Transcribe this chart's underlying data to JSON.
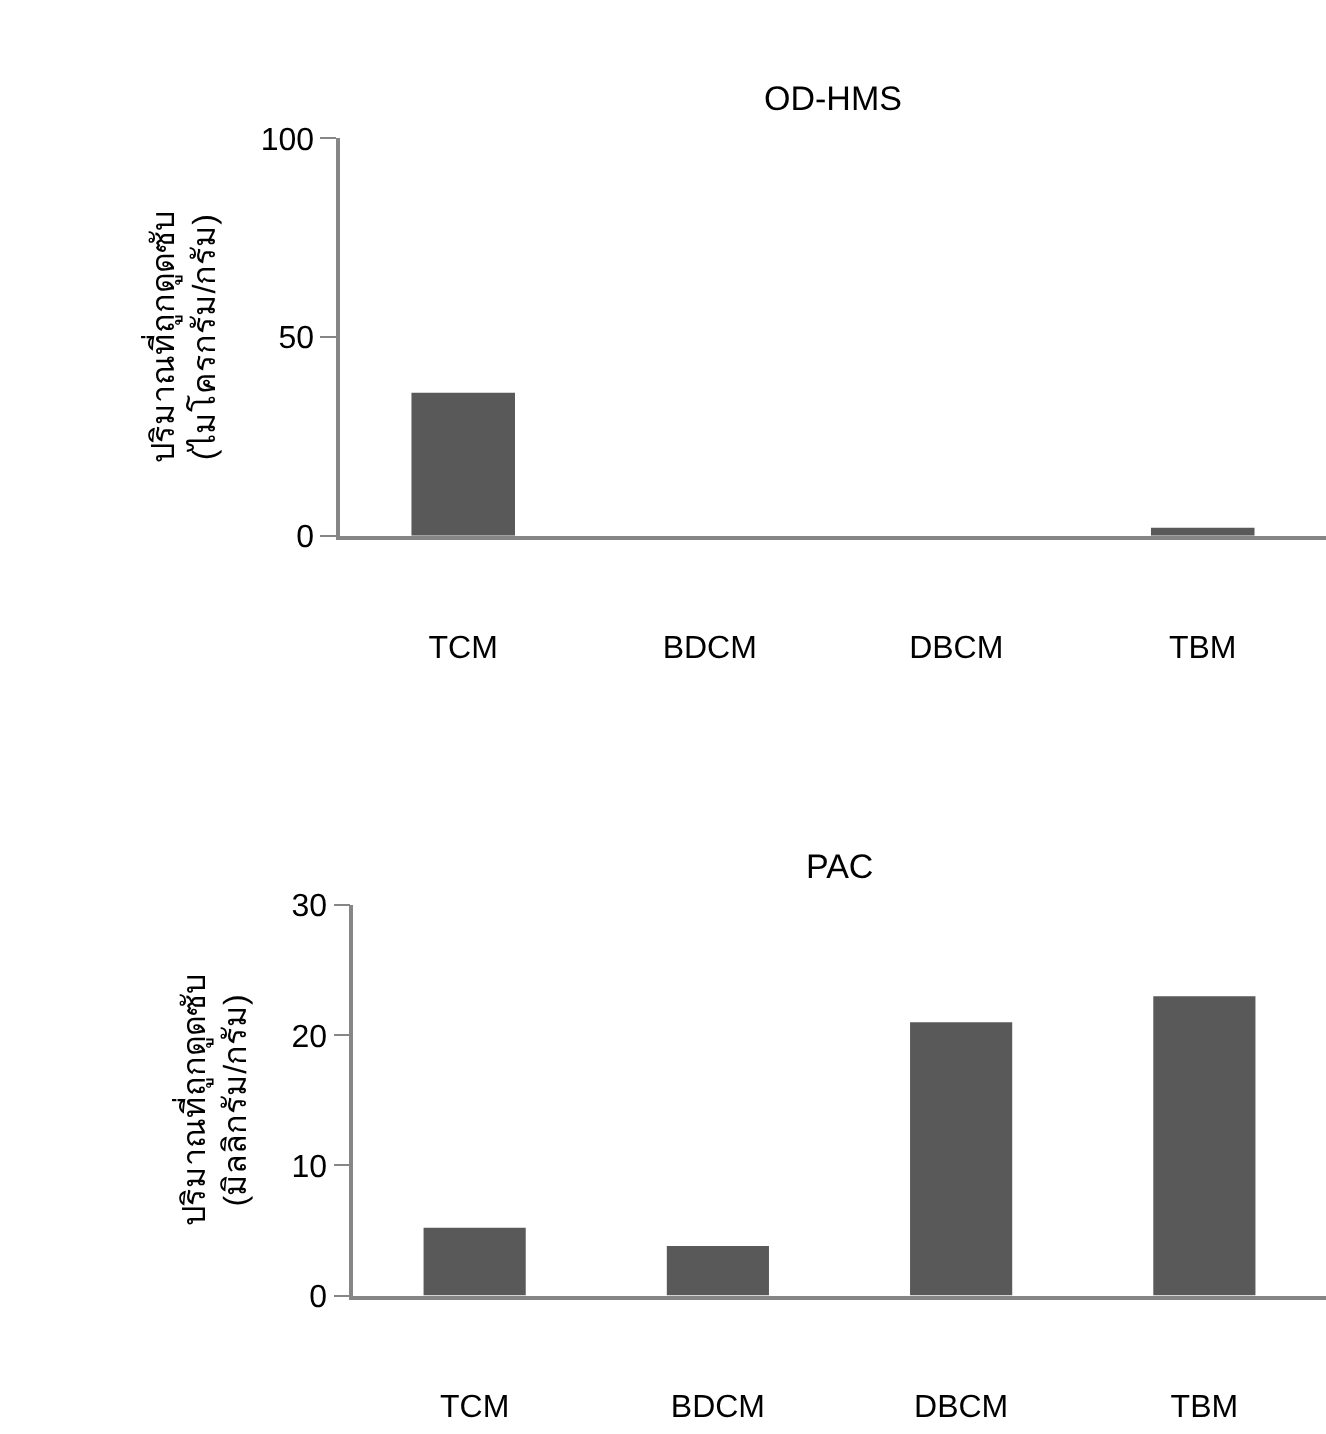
{
  "chart_data": [
    {
      "type": "bar",
      "title": "OD-HMS",
      "ylabel": "ปริมาณที่ถูกดูดซับ\n(ไมโครกรัม/กรัม)",
      "categories": [
        "TCM",
        "BDCM",
        "DBCM",
        "TBM"
      ],
      "values": [
        36,
        0,
        0,
        2
      ],
      "color": "#595959",
      "ylim": [
        0,
        100
      ],
      "yticks": [
        0,
        50,
        100
      ]
    },
    {
      "type": "bar",
      "title": "PAC",
      "ylabel": "ปริมาณที่ถูกดูดซับ\n(มิลลิกรัม/กรัม)",
      "categories": [
        "TCM",
        "BDCM",
        "DBCM",
        "TBM"
      ],
      "values": [
        5.2,
        3.8,
        21,
        23
      ],
      "color": "#595959",
      "ylim": [
        0,
        30
      ],
      "yticks": [
        0,
        10,
        20,
        30
      ]
    }
  ]
}
